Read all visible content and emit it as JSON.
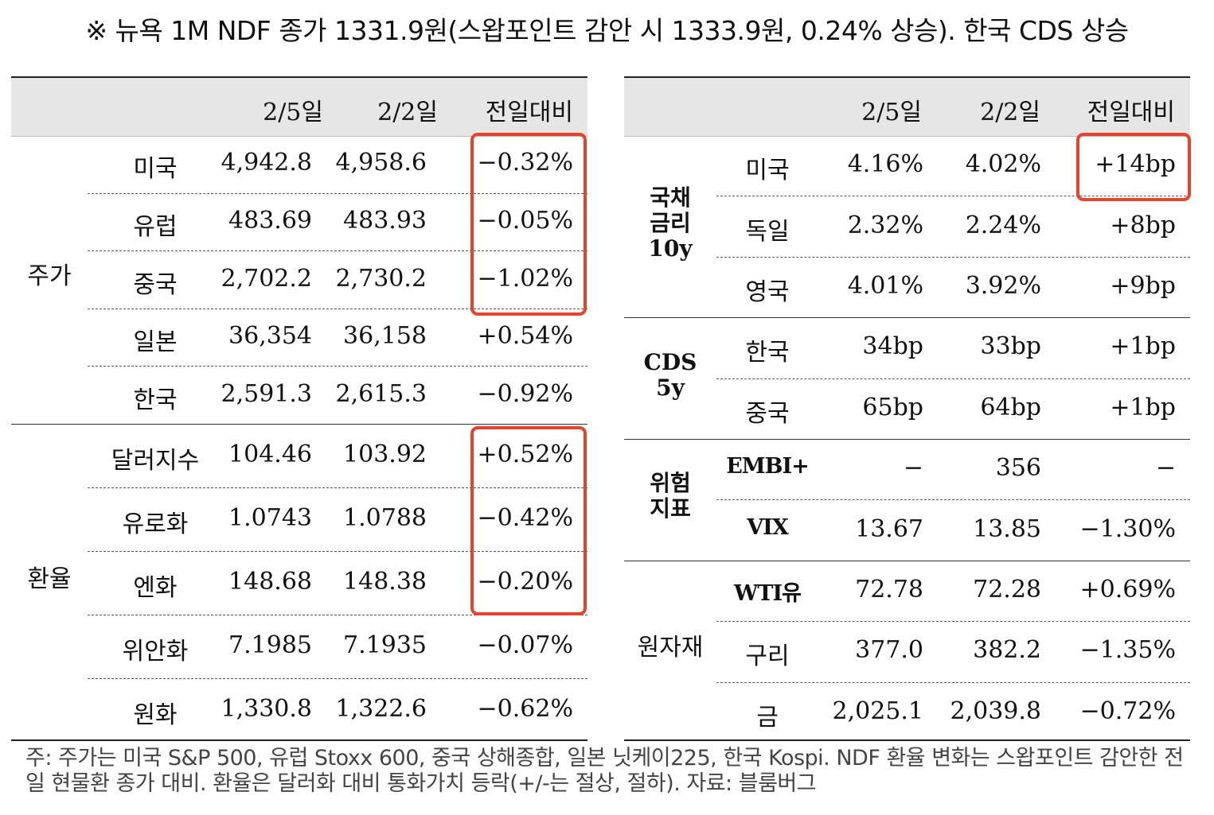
{
  "title": "※ 뉴욕 1M NDF 종가 1331.9원(스왑포인트 감안 시 1333.9원, 0.24% 상승). 한국 CDS 상승",
  "headers": {
    "d1": "2/5일",
    "d2": "2/2일",
    "chg": "전일대비"
  },
  "left": {
    "groups": [
      {
        "label": "주가",
        "rows": [
          {
            "name": "미국",
            "v1": "4,942.8",
            "v2": "4,958.6",
            "chg": "−0.32%"
          },
          {
            "name": "유럽",
            "v1": "483.69",
            "v2": "483.93",
            "chg": "−0.05%"
          },
          {
            "name": "중국",
            "v1": "2,702.2",
            "v2": "2,730.2",
            "chg": "−1.02%"
          },
          {
            "name": "일본",
            "v1": "36,354",
            "v2": "36,158",
            "chg": "+0.54%"
          },
          {
            "name": "한국",
            "v1": "2,591.3",
            "v2": "2,615.3",
            "chg": "−0.92%"
          }
        ]
      },
      {
        "label": "환율",
        "rows": [
          {
            "name": "달러지수",
            "v1": "104.46",
            "v2": "103.92",
            "chg": "+0.52%"
          },
          {
            "name": "유로화",
            "v1": "1.0743",
            "v2": "1.0788",
            "chg": "−0.42%"
          },
          {
            "name": "엔화",
            "v1": "148.68",
            "v2": "148.38",
            "chg": "−0.20%"
          },
          {
            "name": "위안화",
            "v1": "7.1985",
            "v2": "7.1935",
            "chg": "−0.07%"
          },
          {
            "name": "원화",
            "v1": "1,330.8",
            "v2": "1,322.6",
            "chg": "−0.62%"
          }
        ]
      }
    ]
  },
  "right": {
    "groups": [
      {
        "label": "국채\n금리\n10y",
        "rows": [
          {
            "name": "미국",
            "v1": "4.16%",
            "v2": "4.02%",
            "chg": "+14bp"
          },
          {
            "name": "독일",
            "v1": "2.32%",
            "v2": "2.24%",
            "chg": "+8bp"
          },
          {
            "name": "영국",
            "v1": "4.01%",
            "v2": "3.92%",
            "chg": "+9bp"
          }
        ]
      },
      {
        "label": "CDS\n5y",
        "rows": [
          {
            "name": "한국",
            "v1": "34bp",
            "v2": "33bp",
            "chg": "+1bp"
          },
          {
            "name": "중국",
            "v1": "65bp",
            "v2": "64bp",
            "chg": "+1bp"
          }
        ]
      },
      {
        "label": "위험\n지표",
        "rows": [
          {
            "name": "EMBI+",
            "v1": "−",
            "v2": "356",
            "chg": "−"
          },
          {
            "name": "VIX",
            "v1": "13.67",
            "v2": "13.85",
            "chg": "−1.30%"
          }
        ]
      },
      {
        "label": "원자재",
        "rows": [
          {
            "name": "WTI유",
            "v1": "72.78",
            "v2": "72.28",
            "chg": "+0.69%"
          },
          {
            "name": "구리",
            "v1": "377.0",
            "v2": "382.2",
            "chg": "−1.35%"
          },
          {
            "name": "금",
            "v1": "2,025.1",
            "v2": "2,039.8",
            "chg": "−0.72%"
          }
        ]
      }
    ]
  },
  "note": "주: 주가는 미국 S&P 500, 유럽 Stoxx 600, 중국 상해종합, 일본 닛케이225, 한국 Kospi. NDF 환율 변화는 스왑포인트 감안한 전일 현물환 종가 대비. 환율은 달러화 대비 통화가치 등락(+/-는 절상, 절하). 자료: 블룸버그"
}
